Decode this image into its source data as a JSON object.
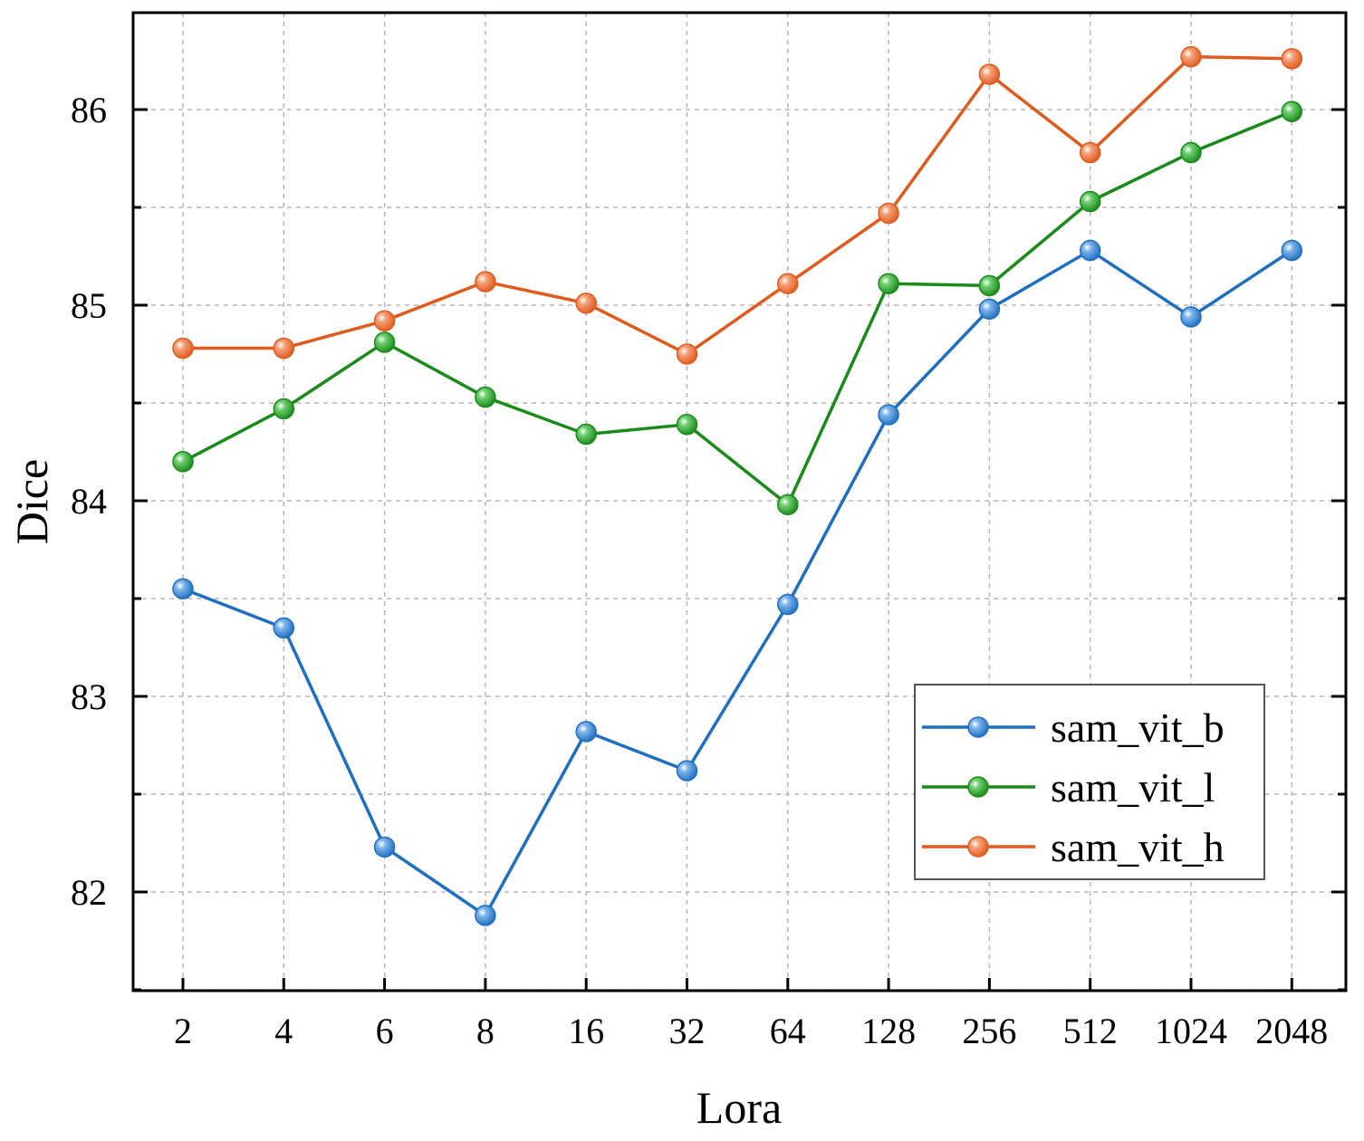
{
  "chart_data": {
    "type": "line",
    "title": "",
    "xlabel": "Lora",
    "ylabel": "Dice",
    "categories": [
      "2",
      "4",
      "6",
      "8",
      "16",
      "32",
      "64",
      "128",
      "256",
      "512",
      "1024",
      "2048"
    ],
    "ylim": [
      81.5,
      86.5
    ],
    "yticks": [
      82,
      83,
      84,
      85,
      86
    ],
    "grid": true,
    "legend_position": "bottom-right",
    "series": [
      {
        "name": "sam_vit_b",
        "color": "#1f6fc0",
        "values": [
          83.55,
          83.35,
          82.23,
          81.88,
          82.82,
          82.62,
          83.47,
          84.44,
          84.98,
          85.28,
          84.94,
          85.28
        ]
      },
      {
        "name": "sam_vit_l",
        "color": "#1a8a1a",
        "values": [
          84.2,
          84.47,
          84.81,
          84.53,
          84.34,
          84.39,
          83.98,
          85.11,
          85.1,
          85.53,
          85.78,
          85.99
        ]
      },
      {
        "name": "sam_vit_h",
        "color": "#e05a1e",
        "values": [
          84.78,
          84.78,
          84.92,
          85.12,
          85.01,
          84.75,
          85.11,
          85.47,
          86.18,
          85.78,
          86.27,
          86.26
        ]
      }
    ]
  }
}
